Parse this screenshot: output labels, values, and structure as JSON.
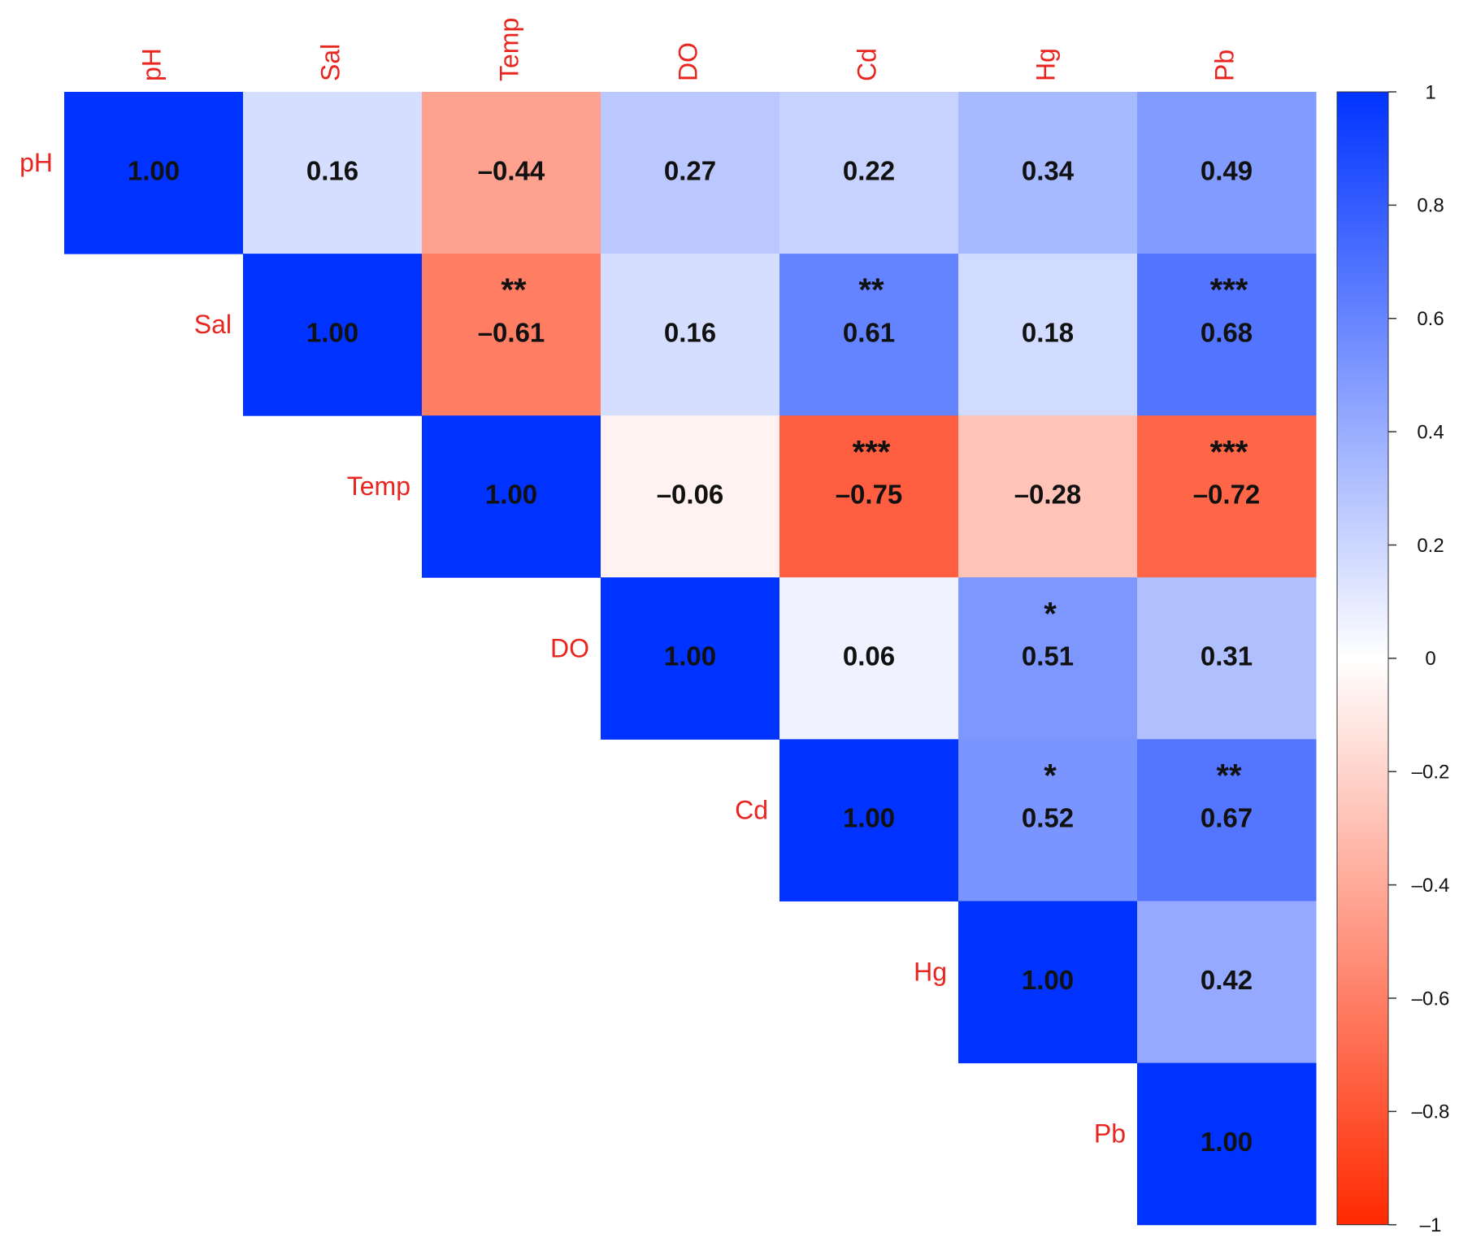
{
  "chart_data": {
    "type": "heatmap",
    "x_categories": [
      "pH",
      "Sal",
      "Temp",
      "DO",
      "Cd",
      "Hg",
      "Pb"
    ],
    "y_categories": [
      "pH",
      "Sal",
      "Temp",
      "DO",
      "Cd",
      "Hg",
      "Pb"
    ],
    "values": [
      [
        1,
        0.16,
        -0.44,
        0.27,
        0.22,
        0.34,
        0.49
      ],
      [
        null,
        1,
        -0.61,
        0.16,
        0.61,
        0.18,
        0.68
      ],
      [
        null,
        null,
        1,
        -0.06,
        -0.75,
        -0.28,
        -0.72
      ],
      [
        null,
        null,
        null,
        1,
        0.06,
        0.51,
        0.31
      ],
      [
        null,
        null,
        null,
        null,
        1,
        0.52,
        0.67
      ],
      [
        null,
        null,
        null,
        null,
        null,
        1,
        0.42
      ],
      [
        null,
        null,
        null,
        null,
        null,
        null,
        1
      ]
    ],
    "value_labels": [
      [
        "1.00",
        "0.16",
        "–0.44",
        "0.27",
        "0.22",
        "0.34",
        "0.49"
      ],
      [
        null,
        "1.00",
        "–0.61",
        "0.16",
        "0.61",
        "0.18",
        "0.68"
      ],
      [
        null,
        null,
        "1.00",
        "–0.06",
        "–0.75",
        "–0.28",
        "–0.72"
      ],
      [
        null,
        null,
        null,
        "1.00",
        "0.06",
        "0.51",
        "0.31"
      ],
      [
        null,
        null,
        null,
        null,
        "1.00",
        "0.52",
        "0.67"
      ],
      [
        null,
        null,
        null,
        null,
        null,
        "1.00",
        "0.42"
      ],
      [
        null,
        null,
        null,
        null,
        null,
        null,
        "1.00"
      ]
    ],
    "stars": [
      [
        null,
        null,
        null,
        null,
        null,
        null,
        null
      ],
      [
        null,
        null,
        "**",
        null,
        "**",
        null,
        "***"
      ],
      [
        null,
        null,
        null,
        null,
        "***",
        null,
        "***"
      ],
      [
        null,
        null,
        null,
        null,
        null,
        "*",
        null
      ],
      [
        null,
        null,
        null,
        null,
        null,
        "*",
        "**"
      ],
      [
        null,
        null,
        null,
        null,
        null,
        null,
        null
      ],
      [
        null,
        null,
        null,
        null,
        null,
        null,
        null
      ]
    ],
    "colors": [
      "#ff2a00",
      "#ffffff",
      "#0033ff"
    ],
    "zlim": [
      -1,
      1
    ],
    "zticks": [
      {
        "value": -1,
        "label": "–1"
      },
      {
        "value": -0.8,
        "label": "–0.8"
      },
      {
        "value": -0.6,
        "label": "–0.6"
      },
      {
        "value": -0.4,
        "label": "–0.4"
      },
      {
        "value": -0.2,
        "label": "–0.2"
      },
      0,
      0.2,
      0.4,
      0.6,
      0.8,
      1
    ]
  }
}
